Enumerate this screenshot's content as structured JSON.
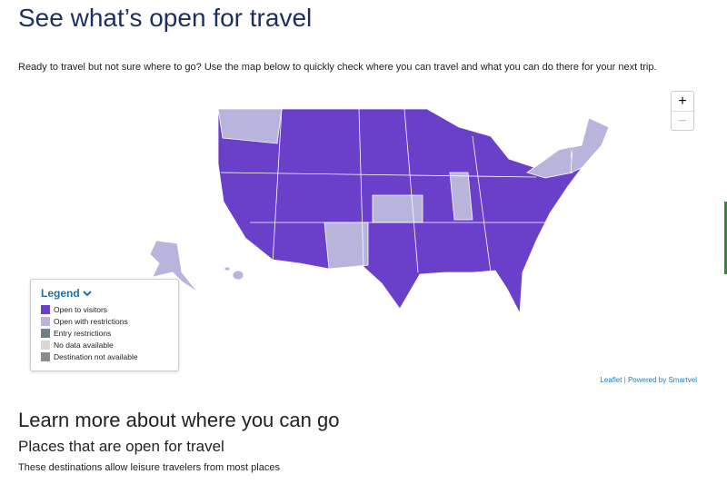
{
  "header": {
    "title": "See what’s open for travel",
    "intro": "Ready to travel but not sure where to go? Use the map below to quickly check where you can travel and what you can do there for your next trip."
  },
  "map": {
    "zoom_in": "+",
    "zoom_out": "−",
    "attribution_leaflet": "Leaflet",
    "attribution_separator": "|",
    "attribution_powered": "Powered by Smartvel"
  },
  "legend": {
    "title": "Legend",
    "items": [
      {
        "label": "Open to visitors",
        "color": "#6a3fc9"
      },
      {
        "label": "Open with restrictions",
        "color": "#b9b4dc"
      },
      {
        "label": "Entry restrictions",
        "color": "#6f7f86"
      },
      {
        "label": "No data available",
        "color": "#d8d8d8"
      },
      {
        "label": "Destination not available",
        "color": "#8c8c8c"
      }
    ]
  },
  "section": {
    "title": "Learn more about where you can go",
    "subtitle": "Places that are open for travel",
    "text": "These destinations allow leisure travelers from most places"
  }
}
